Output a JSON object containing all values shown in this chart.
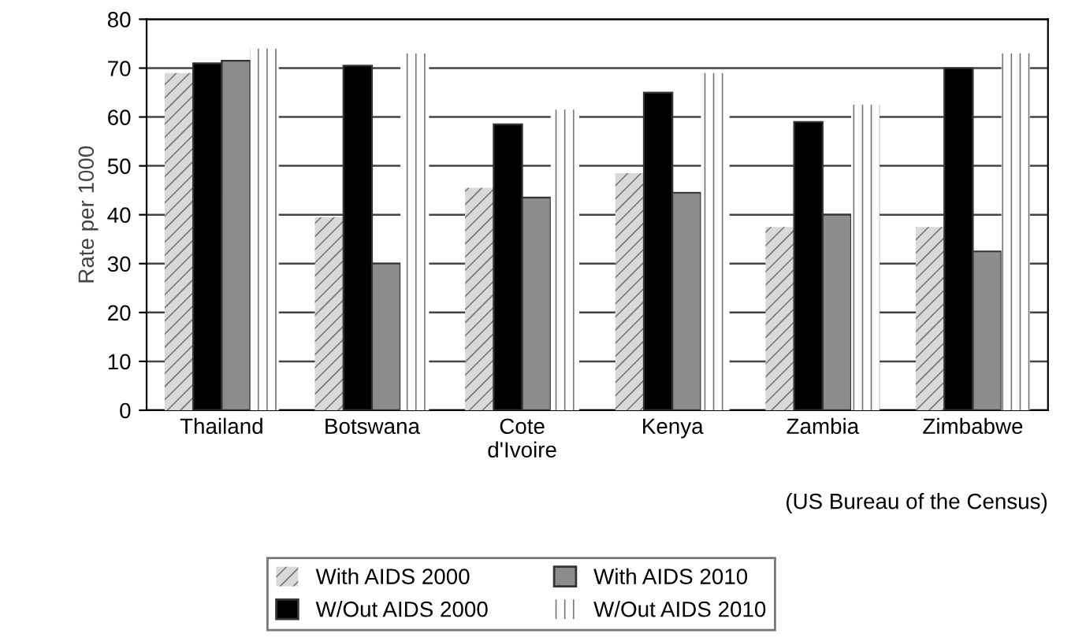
{
  "chart_data": {
    "type": "bar",
    "ylabel": "Rate per 1000",
    "categories": [
      "Thailand",
      "Botswana",
      "Cote\nd'Ivoire",
      "Kenya",
      "Zambia",
      "Zimbabwe"
    ],
    "series": [
      {
        "name": "With AIDS 2000",
        "color": "#d9d9d9",
        "values": [
          69,
          39.5,
          45.5,
          48.5,
          37.5,
          37.5
        ]
      },
      {
        "name": "W/Out AIDS 2000",
        "color": "#000000",
        "values": [
          71,
          70.5,
          58.5,
          65,
          59,
          70
        ]
      },
      {
        "name": "With AIDS 2010",
        "color": "#8c8c8c",
        "values": [
          71.5,
          30,
          43.5,
          44.5,
          40,
          32.5
        ]
      },
      {
        "name": "W/Out AIDS 2010",
        "color": "#ffffff",
        "values": [
          74,
          73,
          61.5,
          69,
          62.5,
          73
        ]
      }
    ],
    "ylim": [
      0,
      80
    ],
    "yticks": [
      0,
      10,
      20,
      30,
      40,
      50,
      60,
      70,
      80
    ],
    "grid": "y",
    "legend": "bottom",
    "annotations": [
      "(US Bureau of the Census)"
    ]
  }
}
